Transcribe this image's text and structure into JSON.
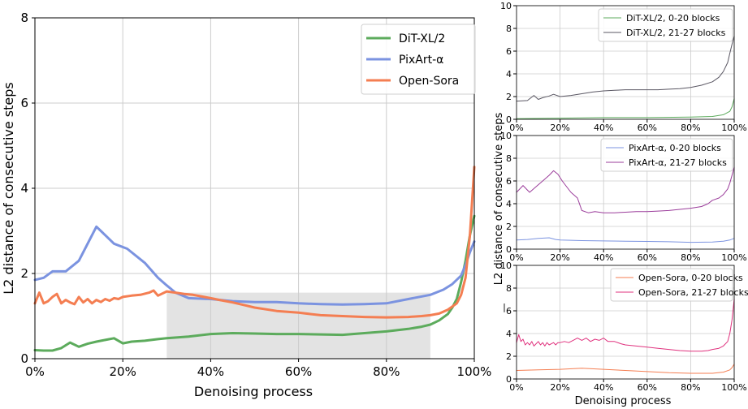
{
  "figure": {
    "xlabel_main": "Denoising process",
    "ylabel_main": "L2 distance of consecutive steps",
    "xlabel_small": "Denoising process",
    "ylabel_small": "L2 distance of consecutive steps",
    "stray_tick": "|"
  },
  "chart_data": [
    {
      "type": "line",
      "panel": "main",
      "xlabel": "Denoising process",
      "ylabel": "L2 distance of consecutive steps",
      "xlim": [
        0,
        100
      ],
      "ylim": [
        0,
        8
      ],
      "xticks": [
        0,
        20,
        40,
        60,
        80,
        100
      ],
      "xtick_labels": [
        "0%",
        "20%",
        "40%",
        "60%",
        "80%",
        "100%"
      ],
      "yticks": [
        0,
        2,
        4,
        6,
        8
      ],
      "ytick_labels": [
        "0",
        "2",
        "4",
        "6",
        "8"
      ],
      "grid": true,
      "legend": "top-right",
      "highlight": {
        "x0": 30,
        "x1": 90,
        "y0": 0,
        "y1": 1.55
      },
      "series": [
        {
          "name": "DiT-XL/2",
          "color": "#5cab5c",
          "x": [
            0,
            2,
            4,
            6,
            8,
            10,
            12,
            14,
            16,
            18,
            20,
            22,
            25,
            28,
            30,
            35,
            40,
            45,
            50,
            55,
            60,
            65,
            70,
            75,
            80,
            85,
            88,
            90,
            92,
            94,
            95,
            96,
            97,
            98,
            99,
            100
          ],
          "y": [
            0.2,
            0.19,
            0.19,
            0.25,
            0.38,
            0.28,
            0.35,
            0.4,
            0.44,
            0.48,
            0.36,
            0.4,
            0.42,
            0.46,
            0.48,
            0.52,
            0.58,
            0.6,
            0.59,
            0.58,
            0.58,
            0.57,
            0.56,
            0.6,
            0.64,
            0.7,
            0.75,
            0.8,
            0.9,
            1.05,
            1.2,
            1.4,
            1.8,
            2.3,
            2.9,
            3.35
          ]
        },
        {
          "name": "PixArt-α",
          "color": "#7b93e0",
          "x": [
            0,
            2,
            4,
            7,
            10,
            12,
            14,
            16,
            18,
            21,
            25,
            28,
            30,
            32,
            35,
            40,
            45,
            50,
            55,
            60,
            65,
            70,
            75,
            80,
            85,
            90,
            93,
            95,
            97,
            98,
            99,
            100
          ],
          "y": [
            1.85,
            1.9,
            2.05,
            2.05,
            2.3,
            2.7,
            3.1,
            2.9,
            2.7,
            2.58,
            2.25,
            1.9,
            1.72,
            1.55,
            1.42,
            1.4,
            1.35,
            1.33,
            1.33,
            1.3,
            1.28,
            1.27,
            1.28,
            1.3,
            1.4,
            1.5,
            1.62,
            1.75,
            1.95,
            2.2,
            2.5,
            2.75
          ]
        },
        {
          "name": "Open-Sora",
          "color": "#f47e52",
          "x": [
            0,
            1,
            2,
            3,
            4,
            5,
            6,
            7,
            8,
            9,
            10,
            11,
            12,
            13,
            14,
            15,
            16,
            17,
            18,
            19,
            20,
            22,
            24,
            26,
            27,
            28,
            30,
            32,
            34,
            36,
            38,
            40,
            42,
            45,
            48,
            50,
            55,
            60,
            65,
            70,
            75,
            80,
            85,
            88,
            90,
            92,
            94,
            96,
            97,
            98,
            99,
            100
          ],
          "y": [
            1.3,
            1.55,
            1.3,
            1.35,
            1.45,
            1.52,
            1.3,
            1.38,
            1.32,
            1.28,
            1.45,
            1.32,
            1.4,
            1.3,
            1.38,
            1.33,
            1.4,
            1.36,
            1.42,
            1.4,
            1.45,
            1.48,
            1.5,
            1.55,
            1.6,
            1.48,
            1.58,
            1.55,
            1.52,
            1.5,
            1.46,
            1.42,
            1.38,
            1.32,
            1.25,
            1.2,
            1.12,
            1.08,
            1.02,
            1.0,
            0.98,
            0.97,
            0.98,
            1.0,
            1.02,
            1.06,
            1.15,
            1.3,
            1.5,
            1.9,
            2.9,
            4.5
          ]
        }
      ]
    },
    {
      "type": "line",
      "panel": "small-1",
      "xlim": [
        0,
        100
      ],
      "ylim": [
        0,
        10
      ],
      "xticks": [
        0,
        20,
        40,
        60,
        80,
        100
      ],
      "xtick_labels": [
        "0%",
        "20%",
        "40%",
        "60%",
        "80%",
        "100%"
      ],
      "yticks": [
        0,
        2,
        4,
        6,
        8,
        10
      ],
      "ytick_labels": [
        "0",
        "2",
        "4",
        "6",
        "8",
        "10"
      ],
      "grid": true,
      "legend": "top-right",
      "series": [
        {
          "name": "DiT-XL/2, 0-20 blocks",
          "color": "#5cab5c",
          "x": [
            0,
            20,
            40,
            60,
            80,
            90,
            95,
            98,
            99,
            100
          ],
          "y": [
            0.05,
            0.1,
            0.15,
            0.15,
            0.2,
            0.25,
            0.4,
            0.7,
            1.1,
            1.8
          ]
        },
        {
          "name": "DiT-XL/2, 21-27 blocks",
          "color": "#5a5763",
          "x": [
            0,
            5,
            8,
            10,
            12,
            15,
            17,
            20,
            25,
            30,
            35,
            40,
            45,
            50,
            55,
            60,
            65,
            70,
            75,
            80,
            85,
            90,
            93,
            95,
            97,
            98,
            99,
            100
          ],
          "y": [
            1.6,
            1.65,
            2.1,
            1.75,
            1.9,
            2.05,
            2.2,
            2.0,
            2.1,
            2.25,
            2.4,
            2.5,
            2.55,
            2.6,
            2.6,
            2.6,
            2.6,
            2.65,
            2.7,
            2.8,
            3.0,
            3.3,
            3.7,
            4.2,
            5.0,
            5.8,
            6.6,
            7.3
          ]
        }
      ]
    },
    {
      "type": "line",
      "panel": "small-2",
      "xlim": [
        0,
        100
      ],
      "ylim": [
        0,
        10
      ],
      "xticks": [
        0,
        20,
        40,
        60,
        80,
        100
      ],
      "xtick_labels": [
        "0%",
        "20%",
        "40%",
        "60%",
        "80%",
        "100%"
      ],
      "yticks": [
        0,
        2,
        4,
        6,
        8,
        10
      ],
      "ytick_labels": [
        "0",
        "2",
        "4",
        "6",
        "8",
        "10"
      ],
      "grid": true,
      "legend": "top-right",
      "series": [
        {
          "name": "PixArt-α, 0-20 blocks",
          "color": "#7b93e0",
          "x": [
            0,
            5,
            10,
            15,
            18,
            20,
            30,
            40,
            50,
            60,
            70,
            80,
            90,
            95,
            98,
            100
          ],
          "y": [
            0.8,
            0.85,
            0.95,
            1.0,
            0.85,
            0.8,
            0.75,
            0.72,
            0.7,
            0.68,
            0.65,
            0.6,
            0.62,
            0.7,
            0.8,
            0.95
          ]
        },
        {
          "name": "PixArt-α, 21-27 blocks",
          "color": "#9b3d9b",
          "x": [
            0,
            3,
            6,
            9,
            12,
            15,
            17,
            19,
            21,
            23,
            25,
            28,
            30,
            33,
            36,
            40,
            45,
            50,
            55,
            60,
            65,
            70,
            75,
            80,
            85,
            88,
            90,
            93,
            95,
            97,
            98,
            99,
            100
          ],
          "y": [
            5.0,
            5.6,
            5.0,
            5.5,
            6.0,
            6.5,
            6.9,
            6.6,
            6.0,
            5.5,
            5.0,
            4.5,
            3.4,
            3.2,
            3.3,
            3.2,
            3.2,
            3.25,
            3.3,
            3.3,
            3.35,
            3.4,
            3.5,
            3.6,
            3.75,
            4.0,
            4.3,
            4.5,
            4.8,
            5.3,
            5.8,
            6.5,
            7.2
          ]
        }
      ]
    },
    {
      "type": "line",
      "panel": "small-3",
      "xlim": [
        0,
        100
      ],
      "ylim": [
        0,
        10
      ],
      "xticks": [
        0,
        20,
        40,
        60,
        80,
        100
      ],
      "xtick_labels": [
        "0%",
        "20%",
        "40%",
        "60%",
        "80%",
        "100%"
      ],
      "yticks": [
        0,
        2,
        4,
        6,
        8,
        10
      ],
      "ytick_labels": [
        "0",
        "2",
        "4",
        "6",
        "8",
        "10"
      ],
      "grid": true,
      "legend": "top-right",
      "series": [
        {
          "name": "Open-Sora, 0-20 blocks",
          "color": "#f47e52",
          "x": [
            0,
            10,
            20,
            30,
            40,
            50,
            60,
            70,
            80,
            90,
            95,
            98,
            99,
            100
          ],
          "y": [
            0.75,
            0.8,
            0.85,
            0.95,
            0.85,
            0.75,
            0.65,
            0.55,
            0.5,
            0.5,
            0.6,
            0.8,
            1.0,
            1.3
          ]
        },
        {
          "name": "Open-Sora, 21-27 blocks",
          "color": "#e0327e",
          "x": [
            0,
            1,
            2,
            3,
            4,
            5,
            6,
            7,
            8,
            9,
            10,
            11,
            12,
            13,
            14,
            15,
            16,
            17,
            18,
            19,
            20,
            22,
            24,
            26,
            28,
            30,
            32,
            34,
            36,
            38,
            40,
            42,
            45,
            48,
            50,
            55,
            60,
            65,
            70,
            75,
            80,
            85,
            88,
            90,
            93,
            95,
            97,
            98,
            99,
            100
          ],
          "y": [
            3.2,
            3.9,
            3.3,
            3.5,
            3.0,
            3.2,
            3.0,
            3.3,
            2.9,
            3.1,
            3.3,
            3.0,
            3.2,
            2.9,
            3.2,
            3.0,
            3.1,
            3.2,
            3.0,
            3.2,
            3.2,
            3.3,
            3.2,
            3.4,
            3.6,
            3.4,
            3.6,
            3.3,
            3.5,
            3.4,
            3.6,
            3.3,
            3.3,
            3.1,
            3.0,
            2.9,
            2.8,
            2.7,
            2.6,
            2.5,
            2.45,
            2.45,
            2.5,
            2.6,
            2.7,
            2.9,
            3.3,
            4.0,
            5.2,
            7.0
          ]
        }
      ]
    }
  ]
}
